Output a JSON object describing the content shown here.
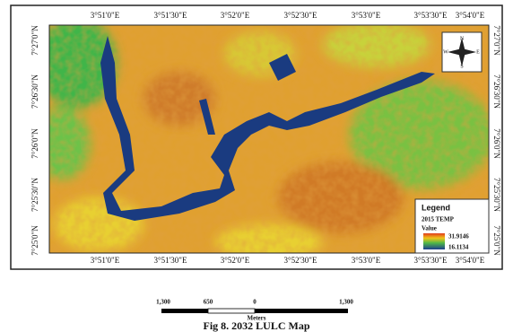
{
  "map": {
    "top_labels": [
      "3°51'0\"E",
      "3°51'30\"E",
      "3°52'0\"E",
      "3°52'30\"E",
      "3°53'0\"E",
      "3°53'30\"E",
      "3°54'0\"E"
    ],
    "bottom_labels": [
      "3°51'0\"E",
      "3°51'30\"E",
      "3°52'0\"E",
      "3°52'30\"E",
      "3°53'0\"E",
      "3°53'30\"E",
      "3°54'0\"E"
    ],
    "left_labels": [
      "7°27'0\"N",
      "7°26'30\"N",
      "7°26'0\"N",
      "7°25'30\"N",
      "7°25'0\"N"
    ],
    "right_labels": [
      "7°27'0\"N",
      "7°26'30\"N",
      "7°26'0\"N",
      "7°25'30\"N",
      "7°25'0\"N"
    ],
    "compass": {
      "n": "N",
      "s": "S",
      "e": "E",
      "w": "W"
    },
    "legend": {
      "title": "Legend",
      "layer": "2015 TEMP",
      "field": "Value",
      "high": "31.9146",
      "low": "16.1134"
    }
  },
  "scale": {
    "labels": [
      "1,300",
      "650",
      "0",
      "1,300"
    ],
    "unit": "Meters"
  },
  "caption": "Fig 8. 2032 LULC Map"
}
